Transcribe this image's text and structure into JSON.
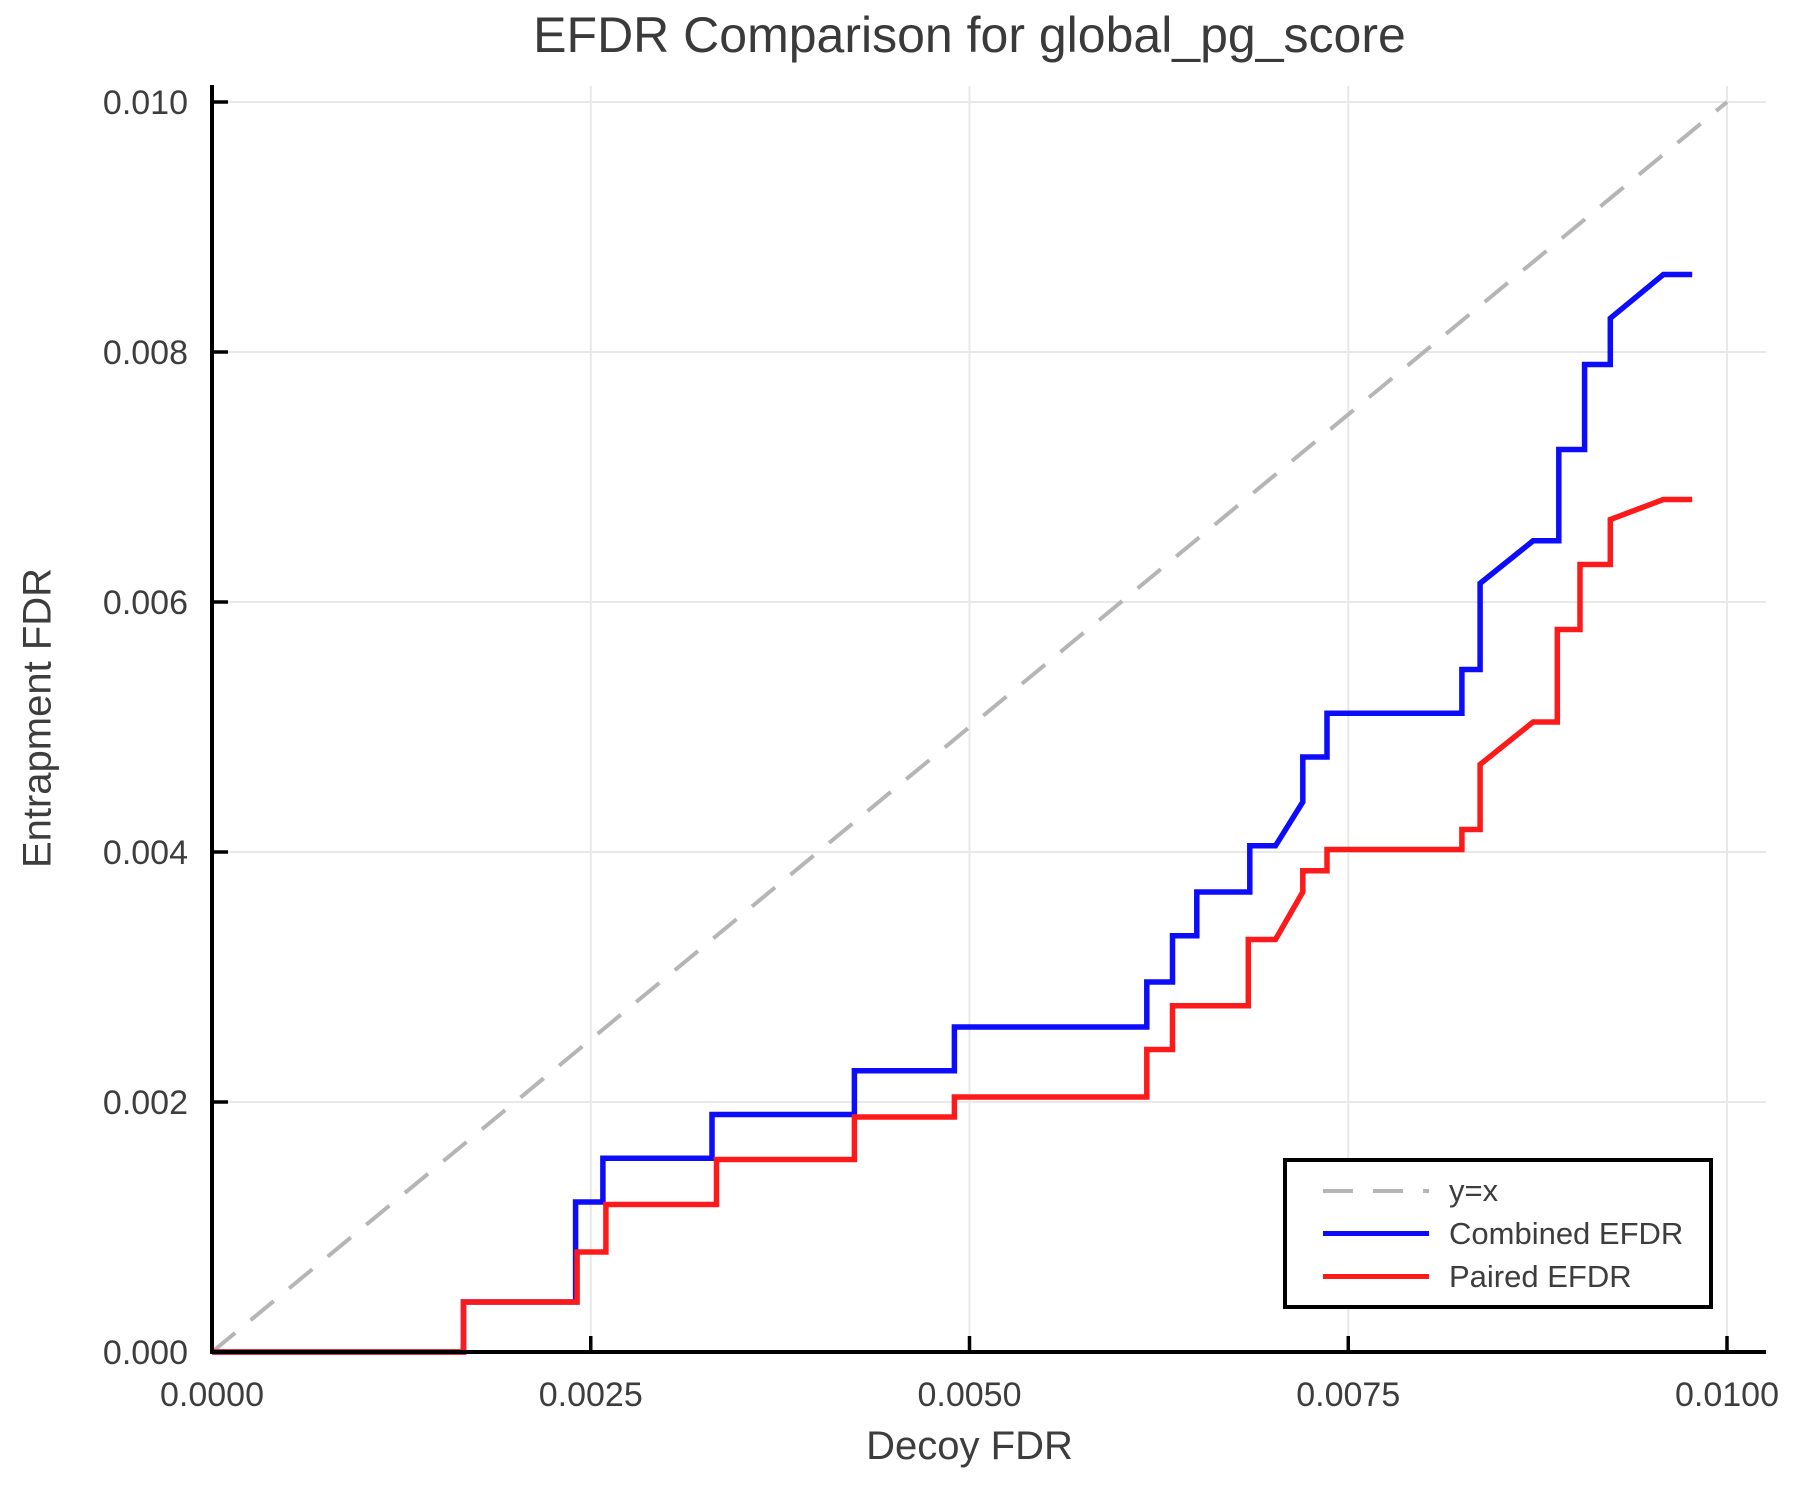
{
  "chart_data": {
    "type": "line",
    "subtype": "step-curves",
    "title": "EFDR Comparison for global_pg_score",
    "xlabel": "Decoy FDR",
    "ylabel": "Entrapment FDR",
    "xlim": [
      0.0,
      0.01
    ],
    "ylim": [
      0.0,
      0.01
    ],
    "grid": true,
    "tick_direction": "in",
    "x_ticks": [
      {
        "value": 0.0,
        "label": "0.0000"
      },
      {
        "value": 0.0025,
        "label": "0.0025"
      },
      {
        "value": 0.005,
        "label": "0.0050"
      },
      {
        "value": 0.0075,
        "label": "0.0075"
      },
      {
        "value": 0.01,
        "label": "0.0100"
      }
    ],
    "y_ticks": [
      {
        "value": 0.0,
        "label": "0.000"
      },
      {
        "value": 0.002,
        "label": "0.002"
      },
      {
        "value": 0.004,
        "label": "0.004"
      },
      {
        "value": 0.006,
        "label": "0.006"
      },
      {
        "value": 0.008,
        "label": "0.008"
      },
      {
        "value": 0.01,
        "label": "0.010"
      }
    ],
    "reference_line": {
      "name": "y=x",
      "from": [
        0.0,
        0.0
      ],
      "to": [
        0.01,
        0.01
      ],
      "style": "dashed",
      "color": "#b5b5b5"
    },
    "legend_position": "lower right",
    "series": [
      {
        "name": "Combined EFDR",
        "color": "#0d0dfc",
        "points": [
          [
            0.0,
            0.0
          ],
          [
            0.00166,
            0.0
          ],
          [
            0.00166,
            0.0004
          ],
          [
            0.0024,
            0.0004
          ],
          [
            0.0024,
            0.0012
          ],
          [
            0.00258,
            0.0012
          ],
          [
            0.00258,
            0.00155
          ],
          [
            0.0033,
            0.00155
          ],
          [
            0.0033,
            0.0019
          ],
          [
            0.00424,
            0.0019
          ],
          [
            0.00424,
            0.00225
          ],
          [
            0.0049,
            0.00225
          ],
          [
            0.0049,
            0.0026
          ],
          [
            0.00617,
            0.0026
          ],
          [
            0.00617,
            0.00296
          ],
          [
            0.00634,
            0.00296
          ],
          [
            0.00634,
            0.00333
          ],
          [
            0.0065,
            0.00333
          ],
          [
            0.0065,
            0.00368
          ],
          [
            0.00685,
            0.00368
          ],
          [
            0.00685,
            0.00405
          ],
          [
            0.00702,
            0.00405
          ],
          [
            0.0072,
            0.0044
          ],
          [
            0.0072,
            0.00476
          ],
          [
            0.00736,
            0.00476
          ],
          [
            0.00736,
            0.00511
          ],
          [
            0.00825,
            0.00511
          ],
          [
            0.00825,
            0.00546
          ],
          [
            0.00837,
            0.00546
          ],
          [
            0.00837,
            0.00615
          ],
          [
            0.00872,
            0.00649
          ],
          [
            0.00889,
            0.00649
          ],
          [
            0.00889,
            0.00722
          ],
          [
            0.00906,
            0.00722
          ],
          [
            0.00906,
            0.0079
          ],
          [
            0.00923,
            0.0079
          ],
          [
            0.00923,
            0.00827
          ],
          [
            0.00958,
            0.00862
          ],
          [
            0.00977,
            0.00862
          ]
        ]
      },
      {
        "name": "Paired EFDR",
        "color": "#fc1a1a",
        "points": [
          [
            0.0,
            0.0
          ],
          [
            0.00166,
            0.0
          ],
          [
            0.00166,
            0.0004
          ],
          [
            0.00241,
            0.0004
          ],
          [
            0.00241,
            0.0008
          ],
          [
            0.0026,
            0.0008
          ],
          [
            0.0026,
            0.00118
          ],
          [
            0.00333,
            0.00118
          ],
          [
            0.00333,
            0.00154
          ],
          [
            0.00424,
            0.00154
          ],
          [
            0.00424,
            0.00188
          ],
          [
            0.0049,
            0.00188
          ],
          [
            0.0049,
            0.00204
          ],
          [
            0.00617,
            0.00204
          ],
          [
            0.00617,
            0.00242
          ],
          [
            0.00634,
            0.00242
          ],
          [
            0.00634,
            0.00277
          ],
          [
            0.00684,
            0.00277
          ],
          [
            0.00684,
            0.0033
          ],
          [
            0.00702,
            0.0033
          ],
          [
            0.0072,
            0.00368
          ],
          [
            0.0072,
            0.00385
          ],
          [
            0.00736,
            0.00385
          ],
          [
            0.00736,
            0.00402
          ],
          [
            0.00825,
            0.00402
          ],
          [
            0.00825,
            0.00418
          ],
          [
            0.00837,
            0.00418
          ],
          [
            0.00837,
            0.0047
          ],
          [
            0.00872,
            0.00504
          ],
          [
            0.00888,
            0.00504
          ],
          [
            0.00888,
            0.00578
          ],
          [
            0.00903,
            0.00578
          ],
          [
            0.00903,
            0.0063
          ],
          [
            0.00923,
            0.0063
          ],
          [
            0.00923,
            0.00666
          ],
          [
            0.00958,
            0.00682
          ],
          [
            0.00977,
            0.00682
          ]
        ]
      }
    ]
  },
  "legend": {
    "entries": [
      {
        "label": "y=x",
        "color": "#b5b5b5",
        "line_style": "dashed"
      },
      {
        "label": "Combined EFDR",
        "color": "#0d0dfc",
        "line_style": "solid"
      },
      {
        "label": "Paired EFDR",
        "color": "#fc1a1a",
        "line_style": "solid"
      }
    ]
  },
  "colors": {
    "background": "#ffffff",
    "grid": "#e8e8e8",
    "spine": "#000000",
    "text": "#3d3d3d"
  }
}
